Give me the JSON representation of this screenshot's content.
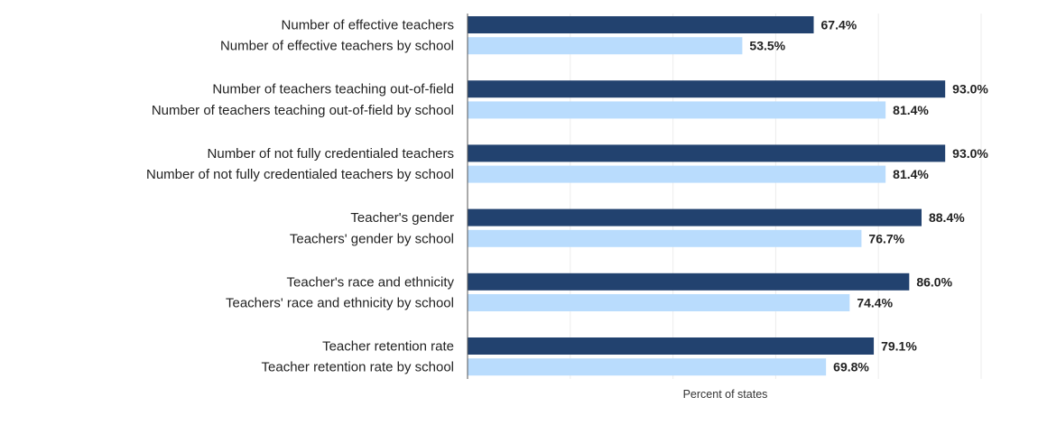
{
  "chart_data": {
    "type": "bar",
    "orientation": "horizontal",
    "xlabel": "Percent of states",
    "xlim": [
      0,
      100
    ],
    "grid": true,
    "colors": {
      "state": "#22426f",
      "by_school": "#b9dcfd"
    },
    "groups": [
      {
        "bars": [
          {
            "label": "Number of effective teachers",
            "value": 67.4,
            "value_label": "67.4%",
            "color_key": "state"
          },
          {
            "label": "Number of effective teachers by school",
            "value": 53.5,
            "value_label": "53.5%",
            "color_key": "by_school"
          }
        ]
      },
      {
        "bars": [
          {
            "label": "Number of teachers teaching out-of-field",
            "value": 93.0,
            "value_label": "93.0%",
            "color_key": "state"
          },
          {
            "label": "Number of teachers teaching out-of-field by school",
            "value": 81.4,
            "value_label": "81.4%",
            "color_key": "by_school"
          }
        ]
      },
      {
        "bars": [
          {
            "label": "Number of not fully credentialed teachers",
            "value": 93.0,
            "value_label": "93.0%",
            "color_key": "state"
          },
          {
            "label": "Number of not fully credentialed teachers by school",
            "value": 81.4,
            "value_label": "81.4%",
            "color_key": "by_school"
          }
        ]
      },
      {
        "bars": [
          {
            "label": "Teacher's gender",
            "value": 88.4,
            "value_label": "88.4%",
            "color_key": "state"
          },
          {
            "label": "Teachers' gender by school",
            "value": 76.7,
            "value_label": "76.7%",
            "color_key": "by_school"
          }
        ]
      },
      {
        "bars": [
          {
            "label": "Teacher's race and ethnicity",
            "value": 86.0,
            "value_label": "86.0%",
            "color_key": "state"
          },
          {
            "label": "Teachers' race and ethnicity by school",
            "value": 74.4,
            "value_label": "74.4%",
            "color_key": "by_school"
          }
        ]
      },
      {
        "bars": [
          {
            "label": "Teacher retention rate",
            "value": 79.1,
            "value_label": "79.1%",
            "color_key": "state"
          },
          {
            "label": "Teacher retention rate by school",
            "value": 69.8,
            "value_label": "69.8%",
            "color_key": "by_school"
          }
        ]
      }
    ]
  }
}
